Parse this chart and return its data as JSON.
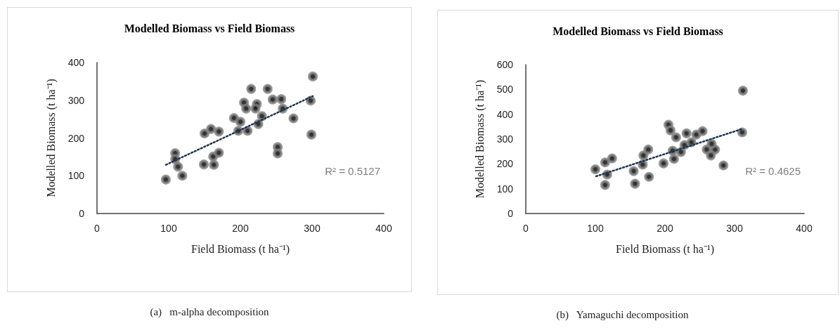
{
  "chart_data": [
    {
      "type": "scatter",
      "title": "Modelled Biomass vs Field Biomass",
      "xlabel": "Field Biomass (t ha⁻¹)",
      "ylabel": "Modelled Biomass (t ha⁻¹)",
      "annotations": [
        "R² = 0.5127",
        "(a)   m-alpha decomposition"
      ],
      "xlim": [
        0,
        400
      ],
      "xticks": [
        0,
        100,
        200,
        300,
        400
      ],
      "ylim": [
        0,
        400
      ],
      "yticks": [
        0,
        100,
        200,
        300,
        400
      ],
      "marker": "circle",
      "series": [
        {
          "color": "#808080",
          "x": [
            96,
            109,
            109,
            113,
            119,
            149,
            150,
            159,
            170,
            162,
            170,
            163,
            191,
            200,
            197,
            210,
            205,
            208,
            215,
            223,
            221,
            230,
            225,
            238,
            245,
            257,
            259,
            274,
            252,
            252,
            301,
            298,
            299
          ],
          "values": [
            90,
            160,
            144,
            124,
            100,
            130,
            212,
            224,
            217,
            151,
            161,
            129,
            253,
            243,
            219,
            219,
            294,
            278,
            330,
            290,
            278,
            258,
            237,
            330,
            302,
            303,
            278,
            252,
            176,
            159,
            363,
            299,
            209
          ]
        },
        {
          "type": "line",
          "color": "#1f3550",
          "line_style": "dotted",
          "marker": "none",
          "x": [
            96,
            301
          ],
          "values": [
            129,
            311
          ]
        }
      ]
    },
    {
      "type": "scatter",
      "title": "Modelled Biomass vs Field Biomass",
      "xlabel": "Field Biomass (t ha⁻¹)",
      "ylabel": "Modelled Biomass (t ha⁻¹)",
      "annotations": [
        "R² = 0.4625",
        "(b)   Yamaguchi decomposition"
      ],
      "xlim": [
        0,
        400
      ],
      "xticks": [
        0,
        100,
        200,
        300,
        400
      ],
      "ylim": [
        0,
        600
      ],
      "yticks": [
        0,
        100,
        200,
        300,
        400,
        500,
        600
      ],
      "marker": "circle",
      "series": [
        {
          "color": "#808080",
          "x": [
            100,
            114,
            124,
            117,
            114,
            155,
            157,
            168,
            169,
            176,
            177,
            198,
            205,
            208,
            216,
            211,
            213,
            223,
            228,
            231,
            238,
            245,
            254,
            260,
            272,
            266,
            267,
            284,
            312,
            311
          ],
          "values": [
            178,
            206,
            222,
            157,
            115,
            171,
            120,
            197,
            234,
            258,
            148,
            202,
            358,
            335,
            307,
            253,
            220,
            248,
            276,
            323,
            287,
            318,
            332,
            258,
            258,
            234,
            281,
            194,
            495,
            327
          ]
        },
        {
          "type": "line",
          "color": "#1f3550",
          "line_style": "dotted",
          "marker": "none",
          "x": [
            101,
            311
          ],
          "values": [
            150,
            341
          ]
        }
      ]
    }
  ]
}
